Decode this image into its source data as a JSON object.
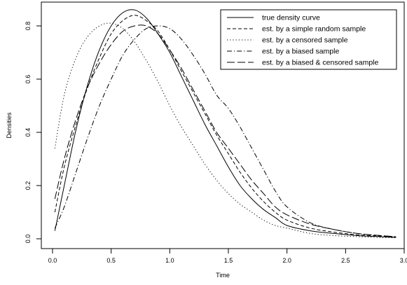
{
  "chart_data": {
    "type": "line",
    "title": "",
    "xlabel": "Time",
    "ylabel": "Densities",
    "xlim": [
      0.0,
      3.0
    ],
    "ylim": [
      0.0,
      0.88
    ],
    "x_ticks": [
      0.0,
      0.5,
      1.0,
      1.5,
      2.0,
      2.5,
      3.0
    ],
    "x_tick_labels": [
      "0.0",
      "0.5",
      "1.0",
      "1.5",
      "2.0",
      "2.5",
      "3.0"
    ],
    "y_ticks": [
      0.0,
      0.2,
      0.4,
      0.6,
      0.8
    ],
    "y_tick_labels": [
      "0.0",
      "0.2",
      "0.4",
      "0.6",
      "0.8"
    ],
    "grid": false,
    "legend_position": "top-right",
    "series": [
      {
        "name": "true density curve",
        "dash": "solid",
        "x": [
          0.02,
          0.1,
          0.2,
          0.3,
          0.4,
          0.5,
          0.6,
          0.7,
          0.8,
          0.9,
          1.0,
          1.1,
          1.2,
          1.3,
          1.4,
          1.5,
          1.6,
          1.7,
          1.8,
          1.9,
          2.0,
          2.2,
          2.4,
          2.6,
          2.8,
          2.93
        ],
        "y": [
          0.03,
          0.2,
          0.41,
          0.58,
          0.71,
          0.8,
          0.85,
          0.86,
          0.83,
          0.77,
          0.7,
          0.61,
          0.52,
          0.43,
          0.35,
          0.27,
          0.2,
          0.15,
          0.11,
          0.08,
          0.05,
          0.03,
          0.02,
          0.012,
          0.008,
          0.005
        ]
      },
      {
        "name": "est. by a simple random sample",
        "dash": "dashed",
        "x": [
          0.02,
          0.1,
          0.2,
          0.3,
          0.4,
          0.5,
          0.6,
          0.7,
          0.8,
          0.9,
          1.0,
          1.1,
          1.2,
          1.3,
          1.4,
          1.5,
          1.6,
          1.7,
          1.8,
          1.9,
          2.0,
          2.2,
          2.4,
          2.6,
          2.8,
          2.93
        ],
        "y": [
          0.1,
          0.27,
          0.43,
          0.57,
          0.68,
          0.77,
          0.82,
          0.84,
          0.82,
          0.78,
          0.71,
          0.63,
          0.55,
          0.47,
          0.39,
          0.32,
          0.25,
          0.19,
          0.14,
          0.1,
          0.07,
          0.04,
          0.025,
          0.015,
          0.01,
          0.006
        ]
      },
      {
        "name": "est. by a censored sample",
        "dash": "dotted",
        "x": [
          0.02,
          0.1,
          0.2,
          0.3,
          0.4,
          0.5,
          0.6,
          0.7,
          0.8,
          0.9,
          1.0,
          1.1,
          1.2,
          1.3,
          1.4,
          1.5,
          1.6,
          1.7,
          1.8,
          1.9,
          2.0,
          2.2,
          2.4,
          2.6,
          2.8,
          2.93
        ],
        "y": [
          0.34,
          0.54,
          0.68,
          0.76,
          0.8,
          0.81,
          0.79,
          0.74,
          0.67,
          0.59,
          0.5,
          0.42,
          0.35,
          0.28,
          0.22,
          0.17,
          0.13,
          0.1,
          0.07,
          0.05,
          0.04,
          0.02,
          0.012,
          0.008,
          0.005,
          0.004
        ]
      },
      {
        "name": "est. by a biased sample",
        "dash": "dashdot",
        "x": [
          0.02,
          0.1,
          0.2,
          0.3,
          0.4,
          0.5,
          0.6,
          0.7,
          0.8,
          0.9,
          1.0,
          1.1,
          1.2,
          1.3,
          1.4,
          1.5,
          1.6,
          1.7,
          1.8,
          1.9,
          2.0,
          2.2,
          2.4,
          2.6,
          2.8,
          2.93
        ],
        "y": [
          0.04,
          0.12,
          0.25,
          0.38,
          0.5,
          0.6,
          0.69,
          0.75,
          0.79,
          0.8,
          0.79,
          0.75,
          0.69,
          0.62,
          0.54,
          0.49,
          0.42,
          0.34,
          0.26,
          0.18,
          0.12,
          0.06,
          0.035,
          0.02,
          0.012,
          0.008
        ]
      },
      {
        "name": "est. by a biased & censored sample",
        "dash": "longdash",
        "x": [
          0.02,
          0.1,
          0.2,
          0.3,
          0.4,
          0.5,
          0.6,
          0.7,
          0.8,
          0.9,
          1.0,
          1.1,
          1.2,
          1.3,
          1.4,
          1.5,
          1.6,
          1.7,
          1.8,
          1.9,
          2.0,
          2.2,
          2.4,
          2.6,
          2.8,
          2.93
        ],
        "y": [
          0.15,
          0.3,
          0.45,
          0.57,
          0.66,
          0.73,
          0.78,
          0.8,
          0.8,
          0.77,
          0.71,
          0.64,
          0.56,
          0.48,
          0.4,
          0.34,
          0.28,
          0.22,
          0.17,
          0.12,
          0.09,
          0.055,
          0.035,
          0.02,
          0.012,
          0.008
        ]
      }
    ]
  }
}
